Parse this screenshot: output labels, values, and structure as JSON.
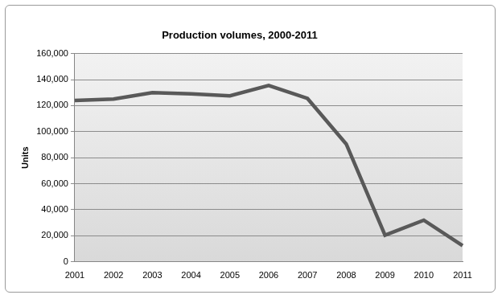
{
  "chart_data": {
    "type": "line",
    "title": "Production volumes, 2000-2011",
    "y_label": "Units",
    "categories": [
      "2001",
      "2002",
      "2003",
      "2004",
      "2005",
      "2006",
      "2007",
      "2008",
      "2009",
      "2010",
      "2011"
    ],
    "values": [
      124000,
      125000,
      130000,
      129000,
      127500,
      135500,
      125500,
      90500,
      20500,
      32000,
      12500
    ],
    "color": "#595959",
    "ylim": [
      0,
      160000
    ],
    "yticks": [
      0,
      {
        "value": 20000,
        "label": "20,000"
      },
      {
        "value": 40000,
        "label": "40,000"
      },
      {
        "value": 60000,
        "label": "60,000"
      },
      {
        "value": 80000,
        "label": "80,000"
      },
      {
        "value": 100000,
        "label": "100,000"
      },
      {
        "value": 120000,
        "label": "120,000"
      },
      {
        "value": 140000,
        "label": "140,000"
      },
      {
        "value": 160000,
        "label": "160,000"
      }
    ],
    "grid": true
  }
}
